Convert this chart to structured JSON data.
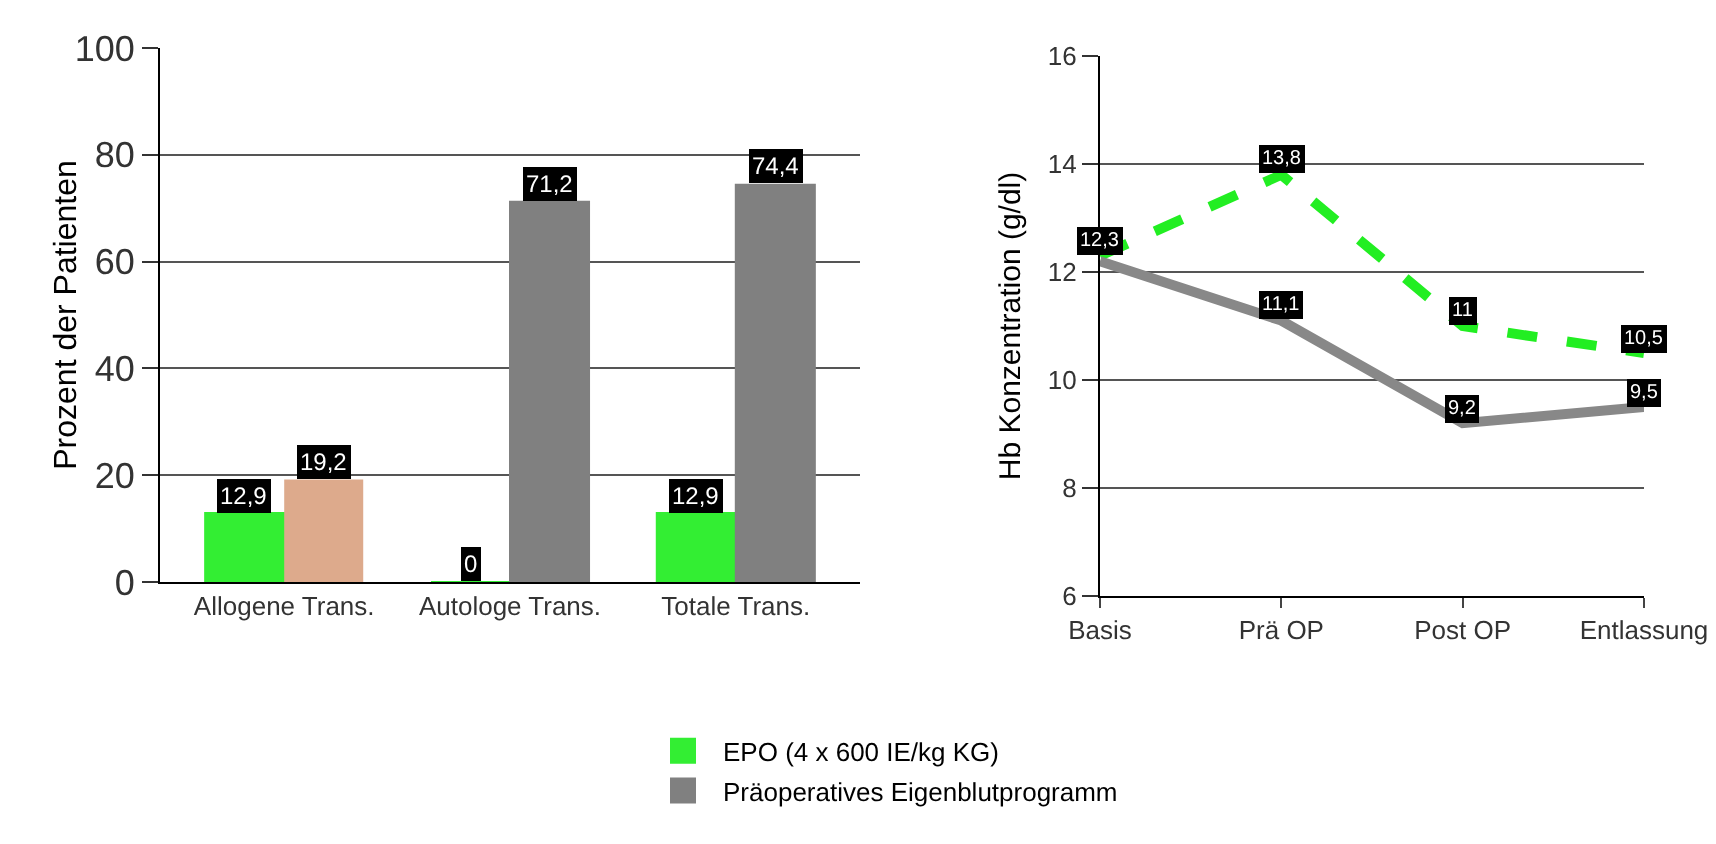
{
  "chart_data": [
    {
      "type": "bar",
      "categories": [
        "Allogene Trans.",
        "Autologe Trans.",
        "Totale Trans."
      ],
      "ylabel": "Prozent der Patienten",
      "ylim": [
        0,
        100
      ],
      "yticks": [
        0,
        20,
        40,
        60,
        80,
        100
      ],
      "grid": "y",
      "legend": "bottom",
      "series": [
        {
          "name": "EPO (4 x 600 IE/kg KG)",
          "color": "#33ee33",
          "values": [
            12.9,
            0,
            12.9
          ],
          "value_labels": [
            "12,9",
            "0",
            "12,9"
          ]
        },
        {
          "name": "Präoperatives Eigenblutprogramm",
          "color": "#808080",
          "colors": [
            "#ddaa8c",
            "#808080",
            "#808080"
          ],
          "values": [
            19.2,
            71.2,
            74.4
          ],
          "value_labels": [
            "19,2",
            "71,2",
            "74,4"
          ]
        }
      ]
    },
    {
      "type": "line",
      "categories": [
        "Basis",
        "Prä OP",
        "Post OP",
        "Entlassung"
      ],
      "ylabel": "Hb Konzentration (g/dl)",
      "ylim": [
        6,
        16
      ],
      "yticks": [
        6,
        8,
        10,
        12,
        14,
        16
      ],
      "grid": "y",
      "marker": "none",
      "series": [
        {
          "color": "#22ee22",
          "line_style": "dashed",
          "values": [
            12.3,
            13.8,
            11,
            10.5
          ],
          "value_labels": [
            "12,3",
            "13,8",
            "11",
            "10,5"
          ]
        },
        {
          "color": "#888888",
          "line_style": "solid",
          "values": [
            12.2,
            11.1,
            9.2,
            9.5
          ],
          "value_labels": [
            null,
            "11,1",
            "9,2",
            "9,5"
          ]
        }
      ]
    }
  ]
}
